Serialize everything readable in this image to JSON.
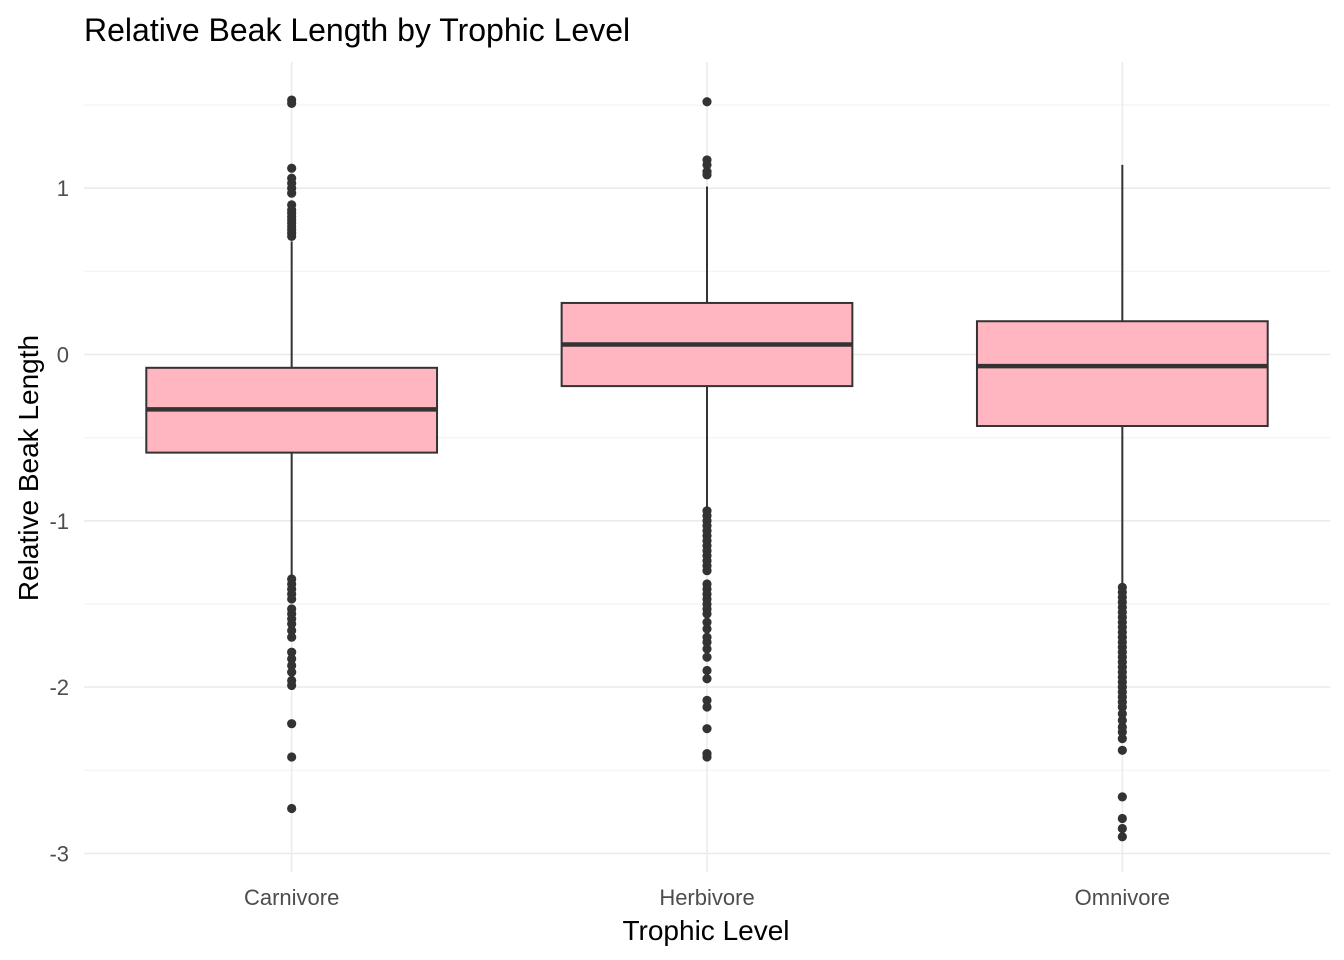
{
  "chart_data": {
    "type": "boxplot",
    "title": "Relative Beak Length by Trophic Level",
    "xlabel": "Trophic Level",
    "ylabel": "Relative Beak Length",
    "ylim": [
      -3.1,
      1.75
    ],
    "yticks": [
      -3,
      -2,
      -1,
      0,
      1
    ],
    "ytick_labels": [
      "-3",
      "-2",
      "-1",
      "0",
      "1"
    ],
    "yminor": [
      -2.5,
      -1.5,
      -0.5,
      0.5,
      1.5
    ],
    "grid": true,
    "box_fill": "#ffb6c1",
    "box_stroke": "#333333",
    "categories": [
      "Carnivore",
      "Herbivore",
      "Omnivore"
    ],
    "boxes": [
      {
        "category": "Carnivore",
        "q1": -0.59,
        "median": -0.33,
        "q3": -0.08,
        "whisker_low": -1.33,
        "whisker_high": 0.68,
        "outliers": [
          1.53,
          1.51,
          1.12,
          1.06,
          1.03,
          1.0,
          0.97,
          0.9,
          0.87,
          0.85,
          0.83,
          0.81,
          0.79,
          0.77,
          0.75,
          0.73,
          0.71,
          -1.35,
          -1.38,
          -1.41,
          -1.44,
          -1.47,
          -1.53,
          -1.56,
          -1.59,
          -1.62,
          -1.66,
          -1.7,
          -1.79,
          -1.83,
          -1.87,
          -1.91,
          -1.96,
          -1.99,
          -2.22,
          -2.42,
          -2.73
        ]
      },
      {
        "category": "Herbivore",
        "q1": -0.19,
        "median": 0.06,
        "q3": 0.31,
        "whisker_low": -0.93,
        "whisker_high": 1.01,
        "outliers": [
          1.52,
          1.17,
          1.14,
          1.1,
          1.08,
          -0.94,
          -0.97,
          -1.0,
          -1.03,
          -1.06,
          -1.09,
          -1.12,
          -1.15,
          -1.18,
          -1.21,
          -1.24,
          -1.27,
          -1.3,
          -1.38,
          -1.41,
          -1.44,
          -1.47,
          -1.5,
          -1.53,
          -1.56,
          -1.61,
          -1.65,
          -1.7,
          -1.73,
          -1.77,
          -1.82,
          -1.9,
          -1.95,
          -2.08,
          -2.12,
          -2.25,
          -2.4,
          -2.42
        ]
      },
      {
        "category": "Omnivore",
        "q1": -0.43,
        "median": -0.07,
        "q3": 0.2,
        "whisker_low": -1.38,
        "whisker_high": 1.14,
        "outliers": [
          -1.4,
          -1.43,
          -1.46,
          -1.49,
          -1.52,
          -1.55,
          -1.58,
          -1.61,
          -1.64,
          -1.67,
          -1.7,
          -1.73,
          -1.76,
          -1.79,
          -1.82,
          -1.85,
          -1.88,
          -1.91,
          -1.94,
          -1.97,
          -2.0,
          -2.03,
          -2.06,
          -2.09,
          -2.12,
          -2.16,
          -2.2,
          -2.24,
          -2.27,
          -2.31,
          -2.38,
          -2.66,
          -2.79,
          -2.85,
          -2.9
        ]
      }
    ]
  }
}
